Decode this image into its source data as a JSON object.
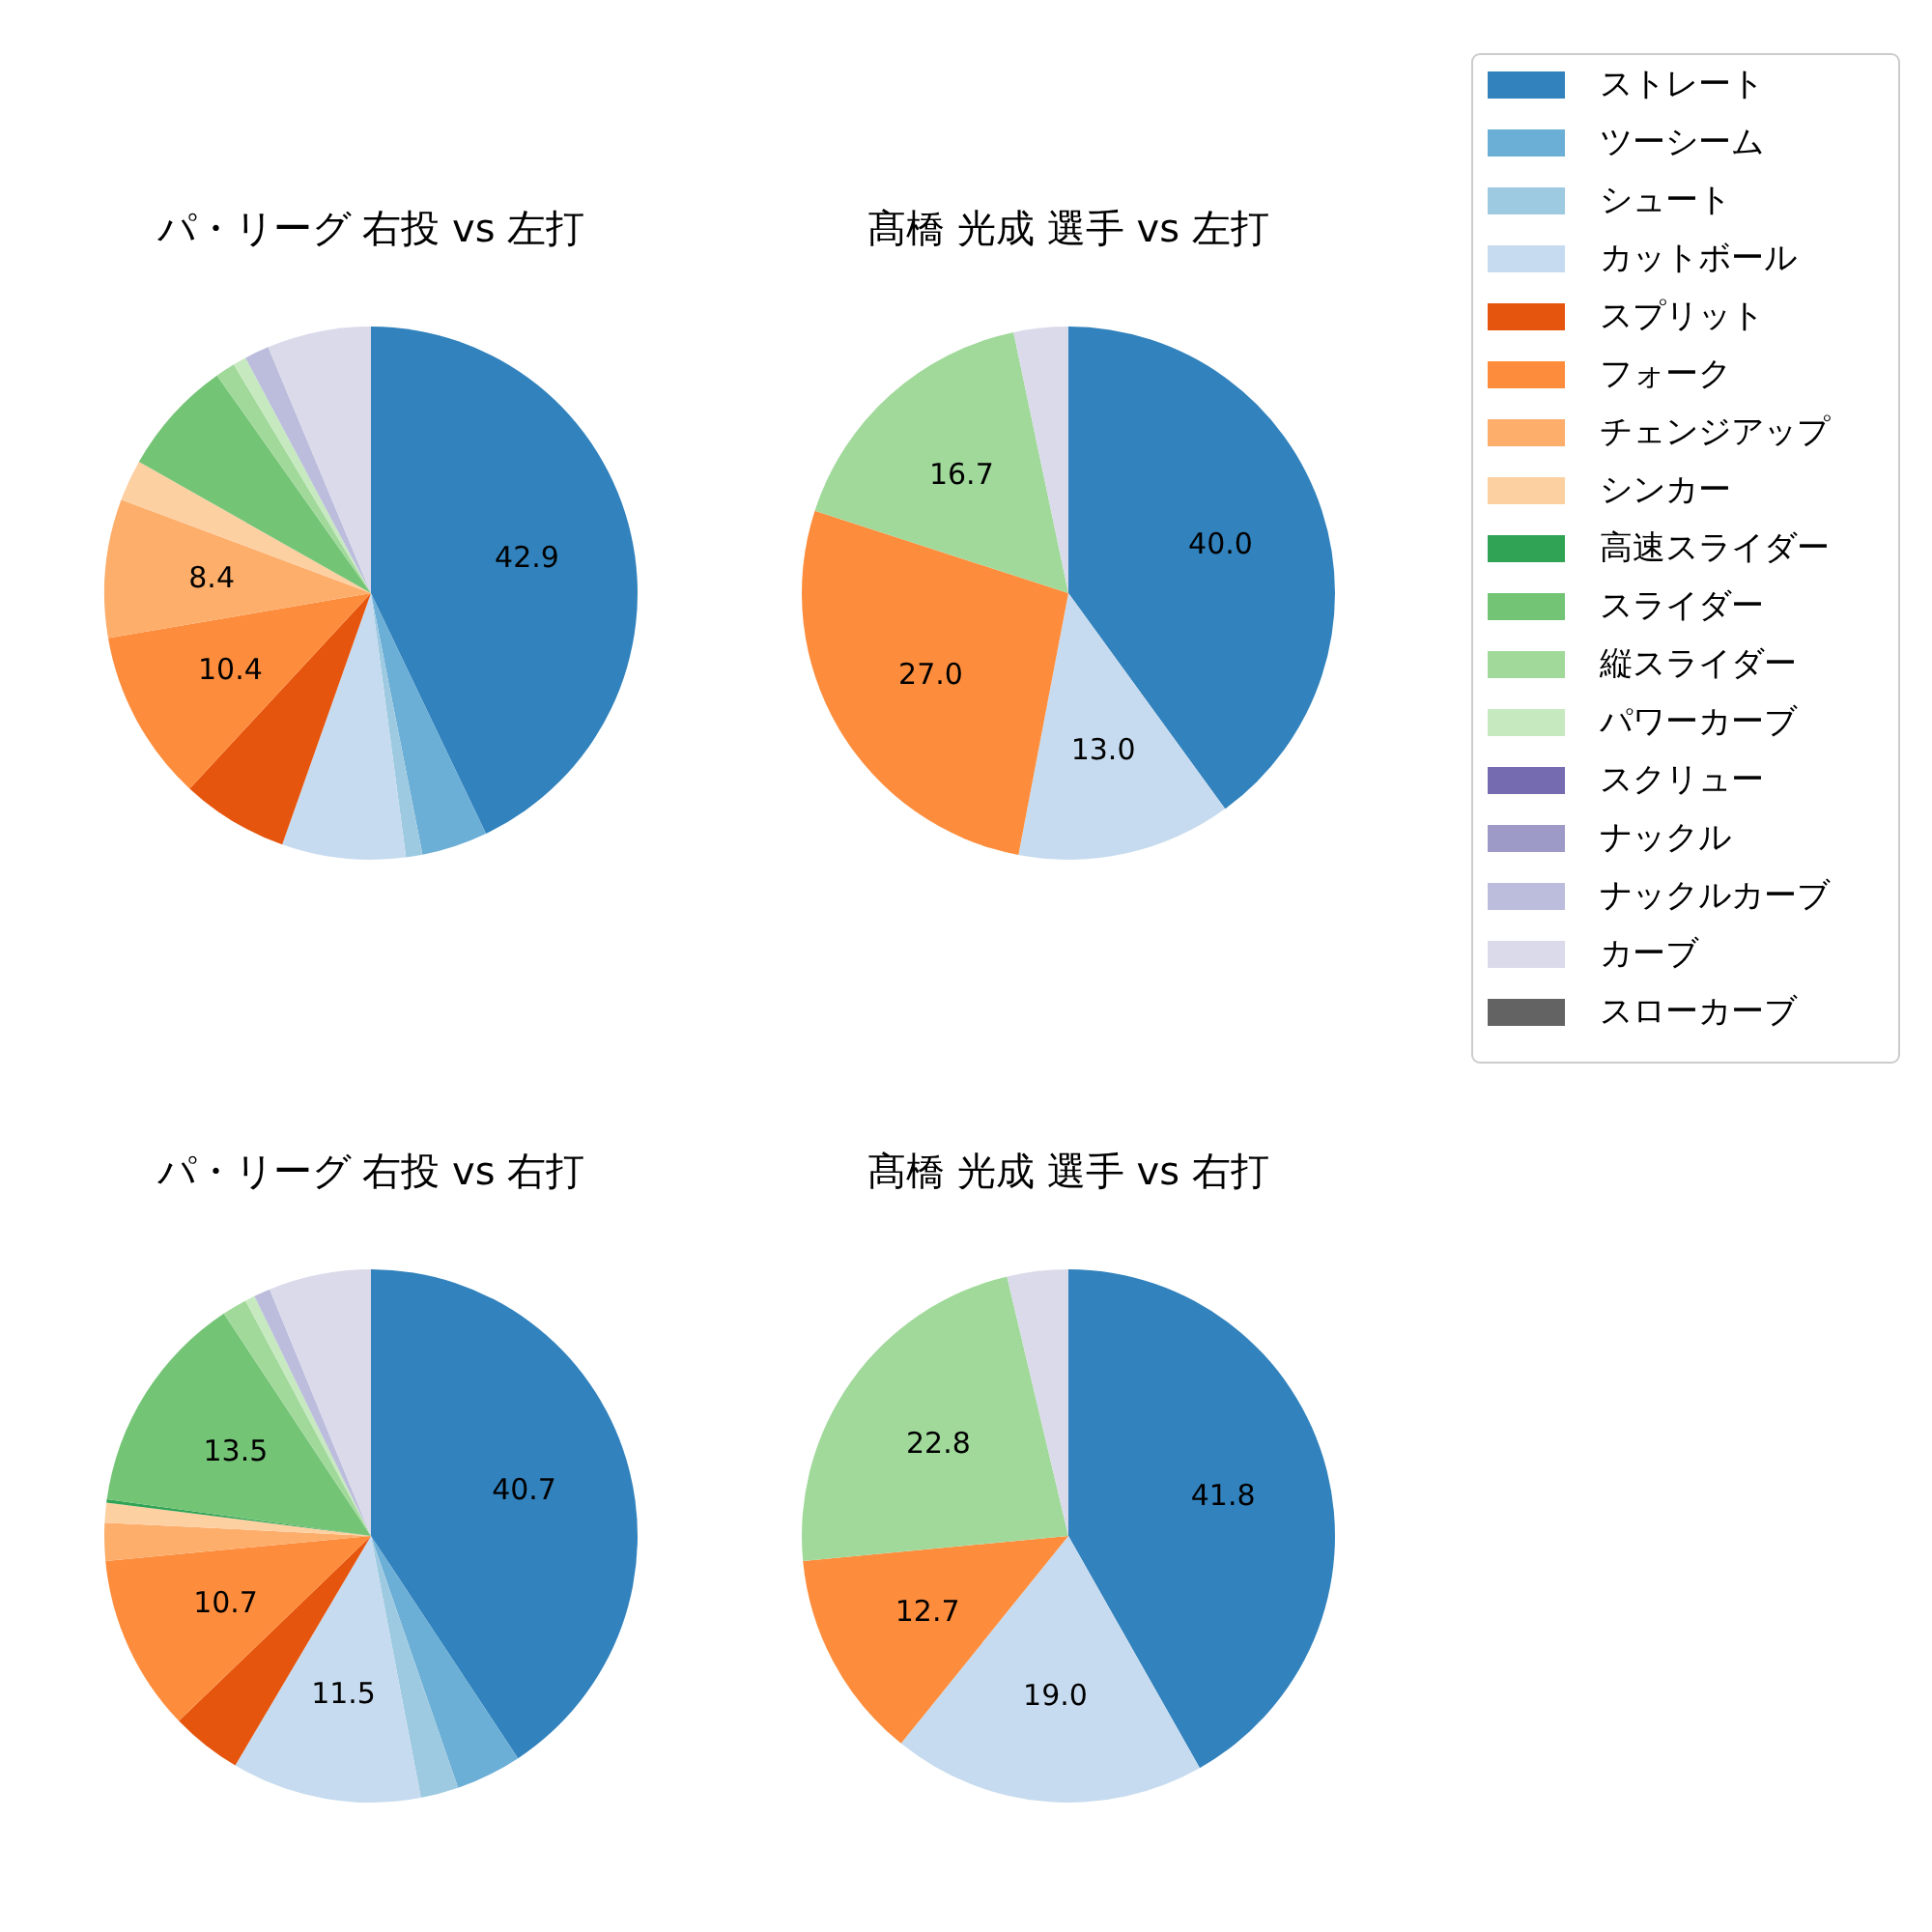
{
  "chart_data": [
    {
      "type": "pie",
      "title": "パ・リーグ 右投 vs 左打",
      "legend": "right",
      "categories": [
        "ストレート",
        "ツーシーム",
        "シュート",
        "カットボール",
        "スプリット",
        "フォーク",
        "チェンジアップ",
        "シンカー",
        "高速スライダー",
        "スライダー",
        "縦スライダー",
        "パワーカーブ",
        "スクリュー",
        "ナックル",
        "ナックルカーブ",
        "カーブ",
        "スローカーブ"
      ],
      "values": [
        42.9,
        4.0,
        1.0,
        7.5,
        6.5,
        10.4,
        8.4,
        2.5,
        0,
        7.0,
        1.2,
        0.8,
        0,
        0,
        1.5,
        6.3,
        0
      ],
      "value_labels": [
        "42.9",
        null,
        null,
        null,
        null,
        "10.4",
        "8.4",
        null,
        null,
        null,
        null,
        null,
        null,
        null,
        null,
        null,
        null
      ],
      "colors": [
        "#3182bd",
        "#6baed6",
        "#9ecae1",
        "#c6dbef",
        "#e6550d",
        "#fd8d3c",
        "#fdae6b",
        "#fdd0a2",
        "#31a354",
        "#74c476",
        "#a1d99b",
        "#c7e9c0",
        "#756bb1",
        "#9e9ac8",
        "#bcbddc",
        "#dadaeb",
        "#636363"
      ]
    },
    {
      "type": "pie",
      "title": "髙橋 光成 選手 vs 左打",
      "categories": [
        null,
        null,
        null,
        null,
        null
      ],
      "values": [
        40.0,
        13.0,
        27.0,
        16.7,
        3.3
      ],
      "value_labels": [
        "40.0",
        "13.0",
        "27.0",
        "16.7",
        null
      ],
      "colors": [
        "#3182bd",
        "#c6dbef",
        "#fd8d3c",
        "#a1d99b",
        "#dadaeb"
      ]
    },
    {
      "type": "pie",
      "title": "パ・リーグ 右投 vs 右打",
      "categories": [
        null,
        null,
        null,
        null,
        null,
        null,
        null,
        null,
        null,
        null,
        null,
        null,
        null,
        null
      ],
      "values": [
        40.7,
        4.0,
        2.3,
        11.5,
        4.3,
        10.7,
        2.3,
        1.2,
        0.2,
        13.5,
        1.5,
        0.6,
        1.0,
        6.2
      ],
      "value_labels": [
        "40.7",
        null,
        null,
        "11.5",
        null,
        "10.7",
        null,
        null,
        null,
        "13.5",
        null,
        null,
        null,
        null
      ],
      "colors": [
        "#3182bd",
        "#6baed6",
        "#9ecae1",
        "#c6dbef",
        "#e6550d",
        "#fd8d3c",
        "#fdae6b",
        "#fdd0a2",
        "#31a354",
        "#74c476",
        "#a1d99b",
        "#c7e9c0",
        "#bcbddc",
        "#dadaeb"
      ]
    },
    {
      "type": "pie",
      "title": "髙橋 光成 選手 vs 右打",
      "categories": [
        null,
        null,
        null,
        null,
        null
      ],
      "values": [
        41.8,
        19.0,
        12.7,
        22.8,
        3.7
      ],
      "value_labels": [
        "41.8",
        "19.0",
        "12.7",
        "22.8",
        null
      ],
      "colors": [
        "#3182bd",
        "#c6dbef",
        "#fd8d3c",
        "#a1d99b",
        "#dadaeb"
      ]
    }
  ]
}
